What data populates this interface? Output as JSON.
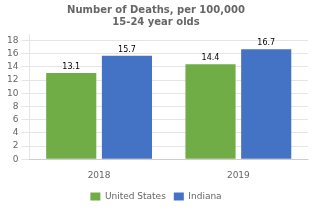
{
  "chart_data": {
    "type": "bar",
    "title": "Number of Deaths, per 100,000\n15-24 year olds",
    "categories": [
      "2018",
      "2019"
    ],
    "series": [
      {
        "name": "United States",
        "color": "#70AD47",
        "values": [
          13.1,
          14.4
        ]
      },
      {
        "name": "Indiana",
        "color": "#4472C4",
        "values": [
          15.7,
          16.7
        ]
      }
    ],
    "ylim": [
      0,
      19
    ],
    "yticks": [
      0,
      2,
      4,
      6,
      8,
      10,
      12,
      14,
      16,
      18
    ],
    "grid": true,
    "legend": "bottom",
    "data_labels": true
  }
}
